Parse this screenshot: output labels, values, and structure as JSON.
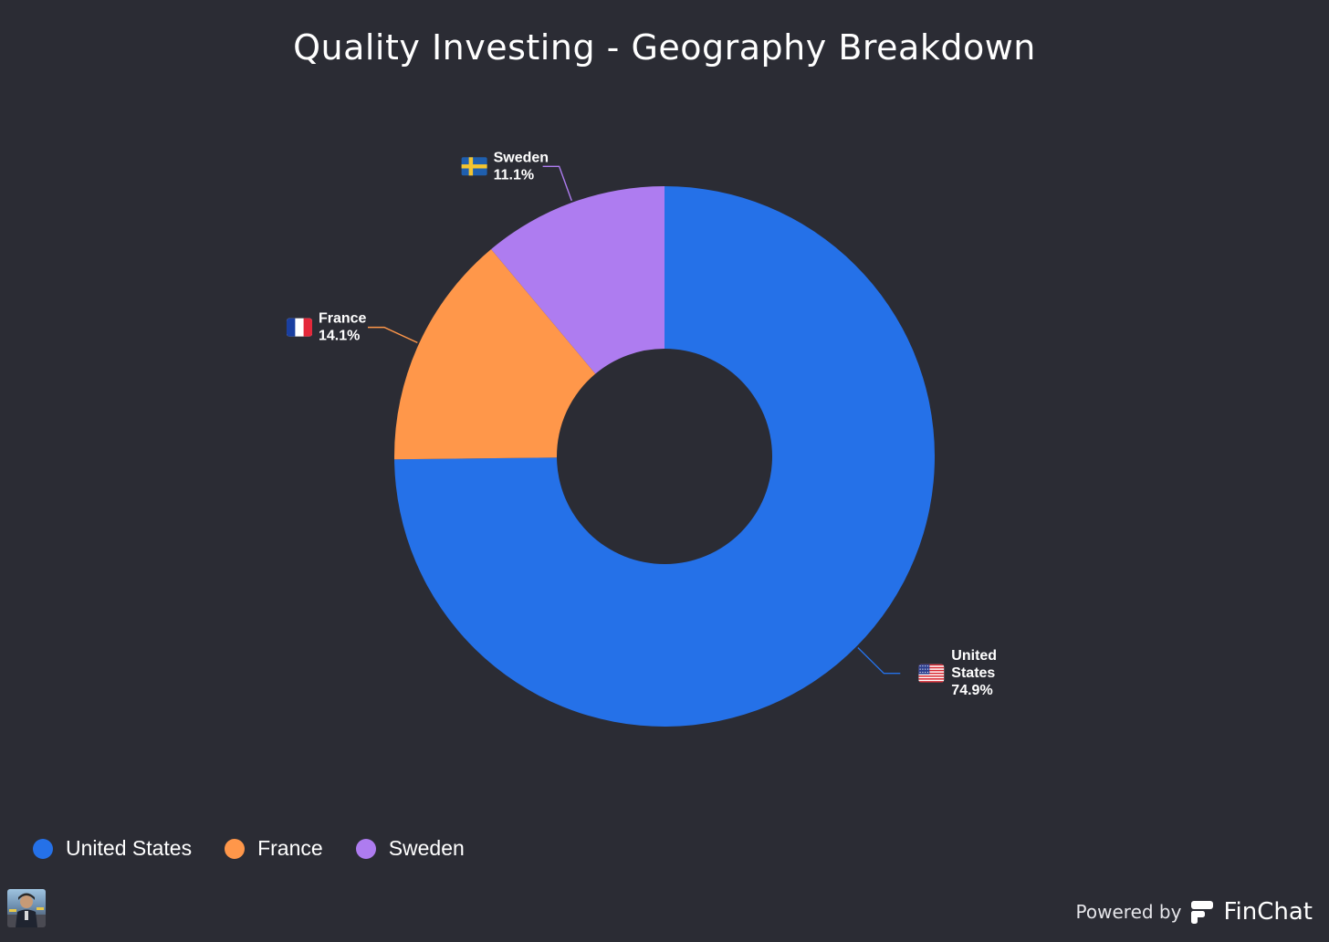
{
  "chart_data": {
    "type": "pie",
    "variant": "donut",
    "title": "Quality Investing - Geography Breakdown",
    "categories": [
      "United States",
      "France",
      "Sweden"
    ],
    "values": [
      74.9,
      14.1,
      11.1
    ],
    "value_labels": [
      "74.9%",
      "14.1%",
      "11.1%"
    ],
    "unit": "%",
    "colors": [
      "#2571e8",
      "#ff974a",
      "#ae7cf0"
    ],
    "slice_label_lines": [
      [
        "United",
        "States"
      ],
      [
        "France"
      ],
      [
        "Sweden"
      ]
    ],
    "flag_icons": [
      "us-flag-icon",
      "france-flag-icon",
      "sweden-flag-icon"
    ],
    "start_angle_deg": 0,
    "direction": "clockwise",
    "legend": {
      "position": "bottom-left",
      "entries": [
        "United States",
        "France",
        "Sweden"
      ]
    }
  },
  "footer": {
    "powered_by": "Powered by",
    "brand": "FinChat"
  },
  "colors": {
    "background": "#2b2c34",
    "text": "#ffffff"
  }
}
